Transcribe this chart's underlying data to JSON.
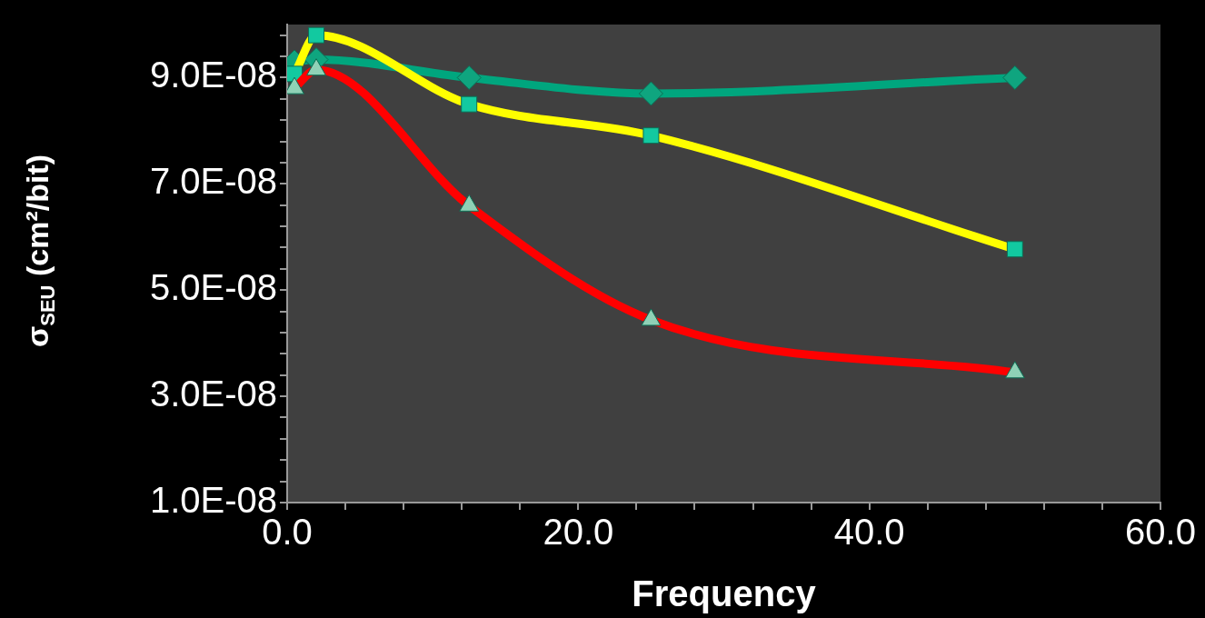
{
  "chart_data": {
    "type": "line",
    "xlabel": "Frequency",
    "ylabel": "σ$_{SEU}$ (cm²/bit)",
    "x": [
      0.5,
      2,
      12.5,
      25,
      50
    ],
    "series": [
      {
        "color": "#00a67e",
        "marker": "diamond",
        "values": [
          9.3e-08,
          9.34e-08,
          9e-08,
          8.7e-08,
          9e-08
        ]
      },
      {
        "color": "#ffff00",
        "marker": "square",
        "values": [
          9.07e-08,
          9.8e-08,
          8.5e-08,
          7.91e-08,
          5.77e-08
        ]
      },
      {
        "color": "#ff0000",
        "marker": "triangle",
        "values": [
          8.8e-08,
          9.15e-08,
          6.59e-08,
          4.44e-08,
          3.45e-08
        ]
      }
    ],
    "xlim": [
      0,
      60
    ],
    "xticks": [
      {
        "value": 0,
        "label": "0.0"
      },
      {
        "value": 4,
        "label": null
      },
      {
        "value": 8,
        "label": null
      },
      {
        "value": 12,
        "label": null
      },
      {
        "value": 16,
        "label": null
      },
      {
        "value": 20,
        "label": "20.0"
      },
      {
        "value": 24,
        "label": null
      },
      {
        "value": 28,
        "label": null
      },
      {
        "value": 32,
        "label": null
      },
      {
        "value": 36,
        "label": null
      },
      {
        "value": 40,
        "label": "40.0"
      },
      {
        "value": 44,
        "label": null
      },
      {
        "value": 48,
        "label": null
      },
      {
        "value": 52,
        "label": null
      },
      {
        "value": 56,
        "label": null
      },
      {
        "value": 60,
        "label": "60.0"
      }
    ],
    "ylim": [
      1e-08,
      1e-07
    ],
    "yticks": [
      {
        "value": 1e-08,
        "label": "1.0E-08"
      },
      {
        "value": 1.4e-08,
        "label": null
      },
      {
        "value": 1.8e-08,
        "label": null
      },
      {
        "value": 2.2e-08,
        "label": null
      },
      {
        "value": 2.6e-08,
        "label": null
      },
      {
        "value": 3e-08,
        "label": "3.0E-08"
      },
      {
        "value": 3.4e-08,
        "label": null
      },
      {
        "value": 3.8e-08,
        "label": null
      },
      {
        "value": 4.2e-08,
        "label": null
      },
      {
        "value": 4.6e-08,
        "label": null
      },
      {
        "value": 5e-08,
        "label": "5.0E-08"
      },
      {
        "value": 5.4e-08,
        "label": null
      },
      {
        "value": 5.8e-08,
        "label": null
      },
      {
        "value": 6.2e-08,
        "label": null
      },
      {
        "value": 6.6e-08,
        "label": null
      },
      {
        "value": 7e-08,
        "label": "7.0E-08"
      },
      {
        "value": 7.4e-08,
        "label": null
      },
      {
        "value": 7.8e-08,
        "label": null
      },
      {
        "value": 8.2e-08,
        "label": null
      },
      {
        "value": 8.6e-08,
        "label": null
      },
      {
        "value": 9e-08,
        "label": "9.0E-08"
      },
      {
        "value": 9.4e-08,
        "label": null
      },
      {
        "value": 9.8e-08,
        "label": null
      }
    ],
    "grid": false,
    "legend": false
  }
}
